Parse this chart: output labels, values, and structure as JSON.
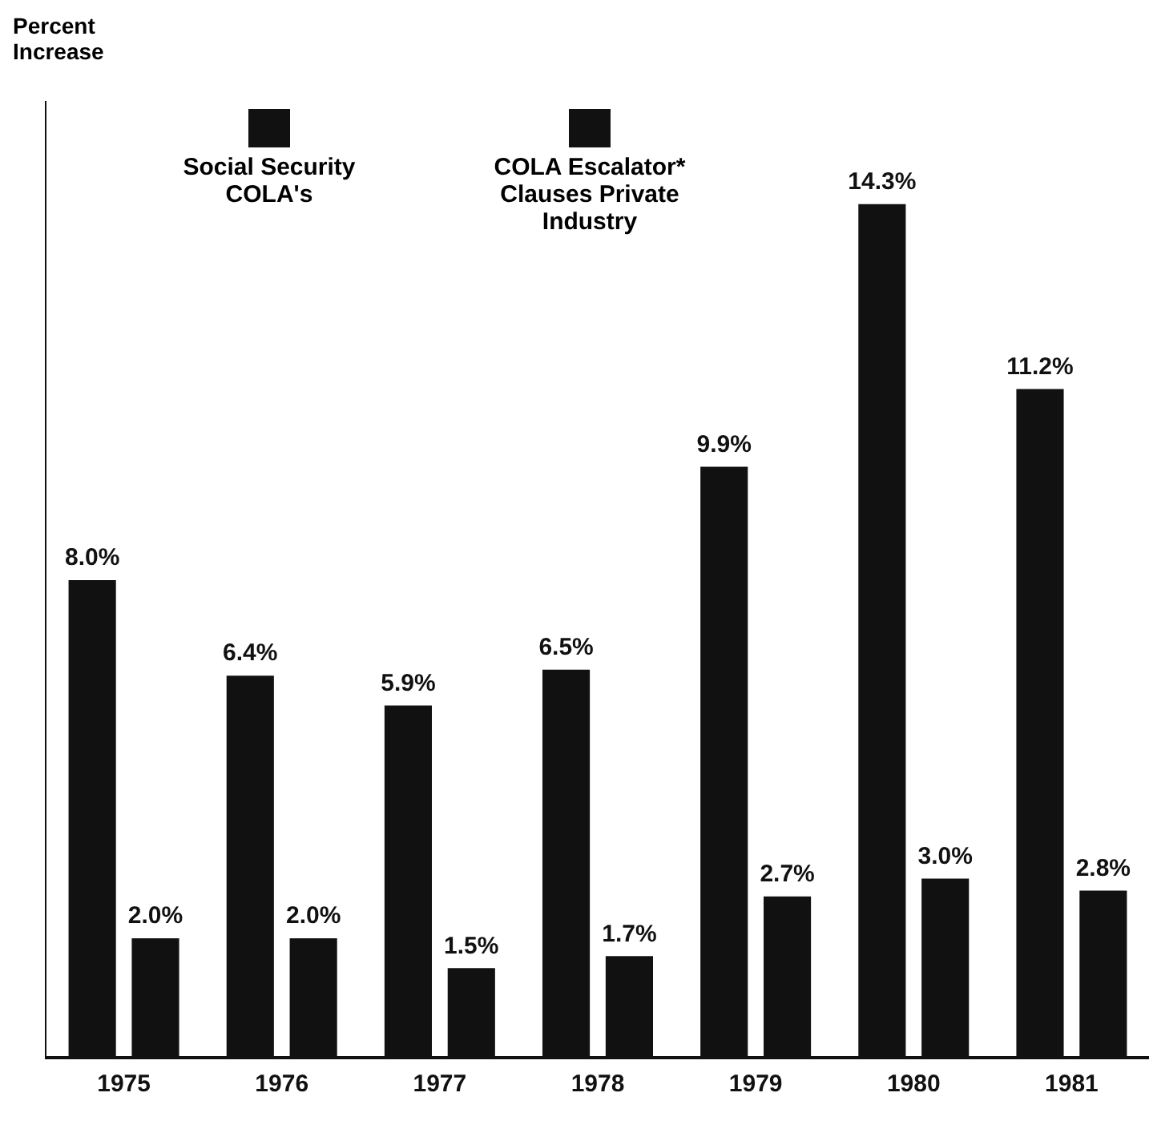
{
  "chart_data": {
    "type": "bar",
    "annotations": [
      "Percent Increase"
    ],
    "categories": [
      "1975",
      "1976",
      "1977",
      "1978",
      "1979",
      "1980",
      "1981"
    ],
    "series": [
      {
        "name": "Social Security COLA's",
        "color": "#111111",
        "values": [
          8.0,
          6.4,
          5.9,
          6.5,
          9.9,
          14.3,
          11.2
        ],
        "value_labels": [
          "8.0%",
          "6.4%",
          "5.9%",
          "6.5%",
          "9.9%",
          "14.3%",
          "11.2%"
        ]
      },
      {
        "name": "COLA Escalator* Clauses Private Industry",
        "color": "#111111",
        "values": [
          2.0,
          2.0,
          1.5,
          1.7,
          2.7,
          3.0,
          2.8
        ],
        "value_labels": [
          "2.0%",
          "2.0%",
          "1.5%",
          "1.7%",
          "2.7%",
          "3.0%",
          "2.8%"
        ]
      }
    ],
    "grid": false,
    "legend": "top left"
  }
}
